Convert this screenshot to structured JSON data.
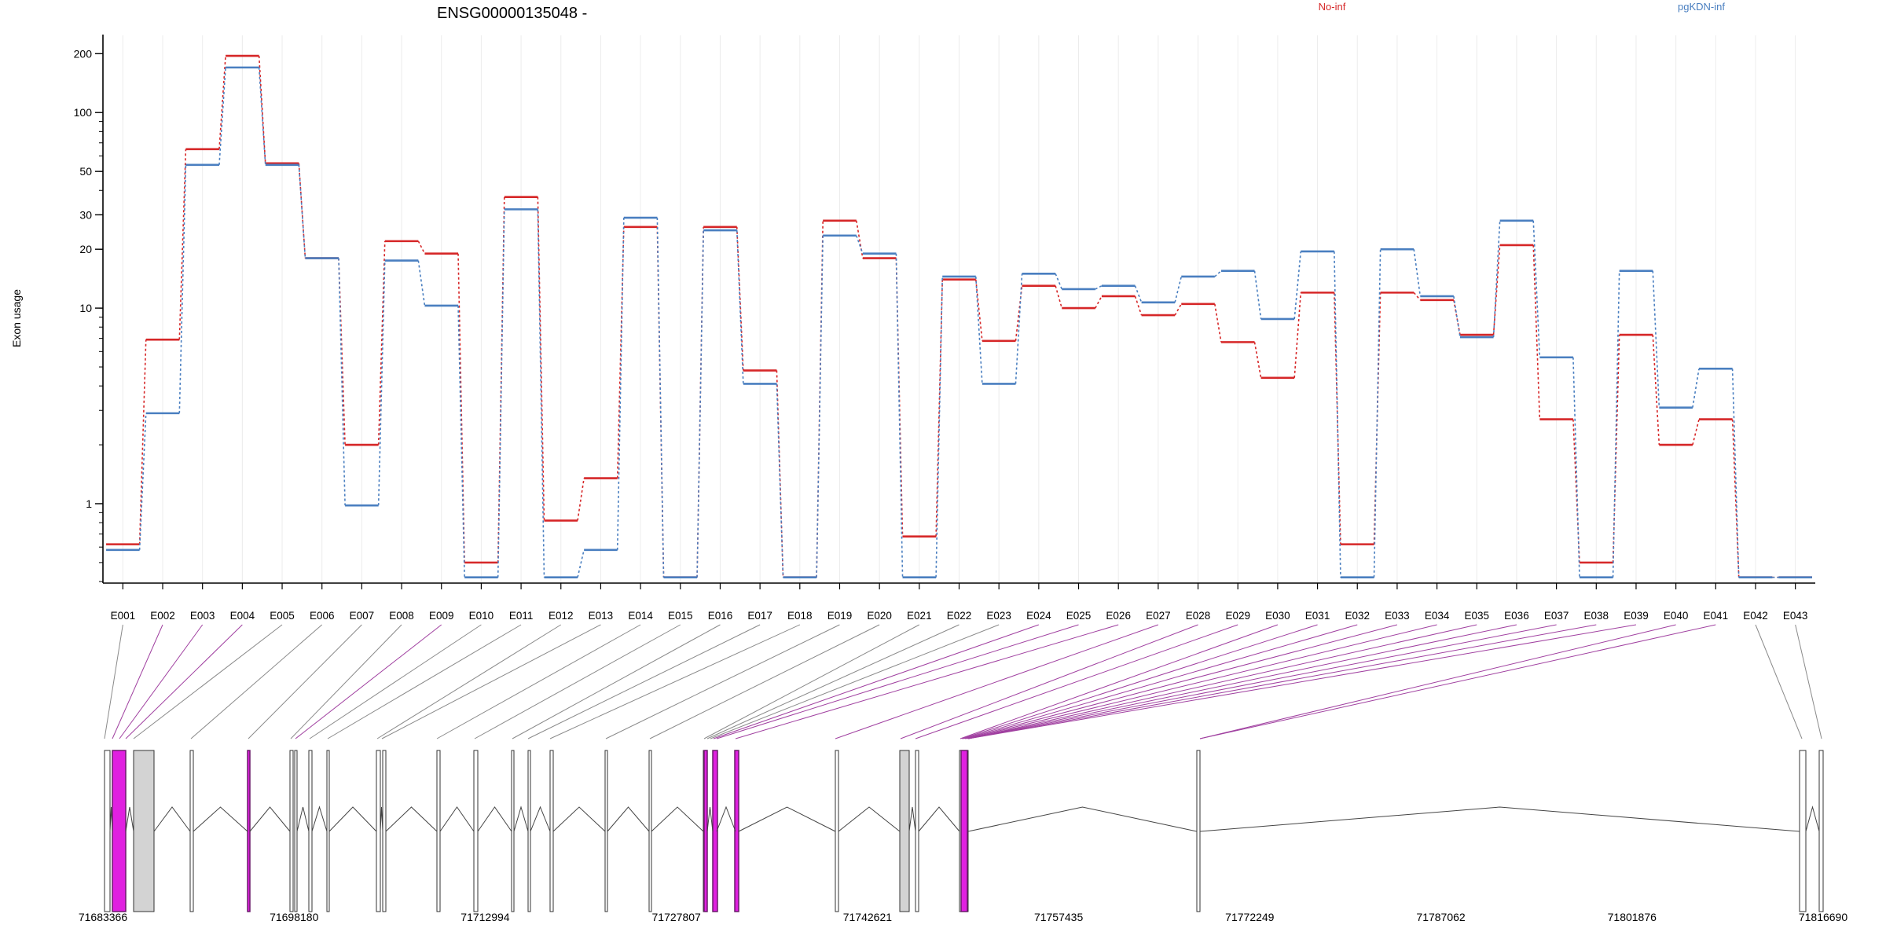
{
  "chart_data": {
    "type": "line",
    "title": "ENSG00000135048 -",
    "ylabel": "Exon usage",
    "xlabel": "",
    "y_scale": "log",
    "y_ticks": [
      1,
      10,
      20,
      30,
      50,
      100,
      200
    ],
    "ylim": [
      0.4,
      220
    ],
    "grid": "vertical, light grey",
    "categories": [
      "E001",
      "E002",
      "E003",
      "E004",
      "E005",
      "E006",
      "E007",
      "E008",
      "E009",
      "E010",
      "E011",
      "E012",
      "E013",
      "E014",
      "E015",
      "E016",
      "E017",
      "E018",
      "E019",
      "E020",
      "E021",
      "E022",
      "E023",
      "E024",
      "E025",
      "E026",
      "E027",
      "E028",
      "E029",
      "E030",
      "E031",
      "E032",
      "E033",
      "E034",
      "E035",
      "E036",
      "E037",
      "E038",
      "E039",
      "E040",
      "E041",
      "E042",
      "E043"
    ],
    "series": [
      {
        "name": "No-inf",
        "color": "#d62728",
        "values": [
          0.62,
          6.9,
          65,
          195,
          55,
          18,
          2.0,
          22,
          19,
          0.5,
          37,
          0.82,
          1.35,
          26,
          0.42,
          26,
          4.8,
          0.42,
          28,
          18,
          0.68,
          14,
          6.8,
          13,
          10,
          11.5,
          9.2,
          10.5,
          6.7,
          4.4,
          12,
          0.62,
          12,
          11,
          7.3,
          21,
          2.7,
          0.5,
          7.3,
          2.0,
          2.7,
          0.42,
          0.42
        ]
      },
      {
        "name": "pgKDN-inf",
        "color": "#4a7fc0",
        "values": [
          0.58,
          2.9,
          54,
          170,
          54,
          18,
          0.98,
          17.5,
          10.3,
          0.42,
          32,
          0.42,
          0.58,
          29,
          0.42,
          25,
          4.1,
          0.42,
          23.5,
          19,
          0.42,
          14.5,
          4.1,
          15,
          12.5,
          13,
          10.7,
          14.5,
          15.5,
          8.8,
          19.5,
          0.42,
          20,
          11.5,
          7.1,
          28,
          5.6,
          0.42,
          15.5,
          3.1,
          4.9,
          0.42,
          0.42
        ]
      }
    ],
    "gene_model": {
      "coordinate_ticks": [
        "71683366",
        "71698180",
        "71712994",
        "71727807",
        "71742621",
        "71757435",
        "71772249",
        "71787062",
        "71801876",
        "71816690"
      ],
      "highlighted_exons": [
        "E002",
        "E003",
        "E004",
        "E009",
        "E024",
        "E025",
        "E026",
        "E027",
        "E028",
        "E029",
        "E030",
        "E031",
        "E032",
        "E033",
        "E034",
        "E035",
        "E036",
        "E037",
        "E038",
        "E039",
        "E040",
        "E041"
      ],
      "colors": {
        "highlight": "#e020e0",
        "highlight_border": "#6a1b6a",
        "exon": "#d3d3d3"
      }
    }
  }
}
